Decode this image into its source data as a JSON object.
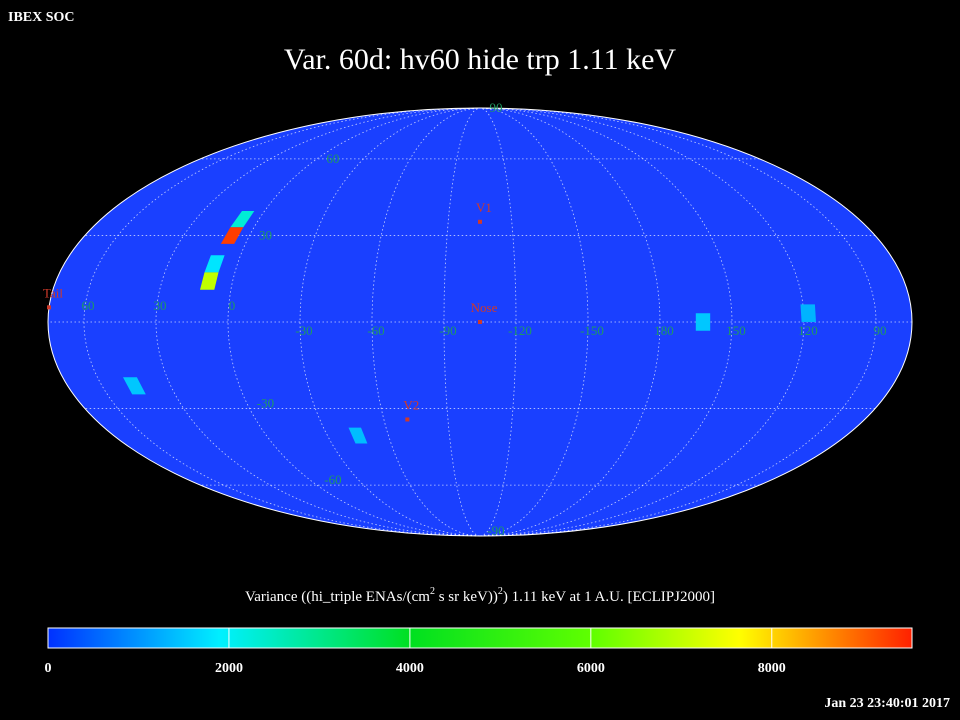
{
  "header": "IBEX SOC",
  "title": "Var. 60d: hv60 hide trp 1.11 keV",
  "map": {
    "lon_labels": [
      60,
      30,
      0,
      -30,
      -60,
      -90,
      -120,
      -150,
      180,
      150,
      120,
      90
    ],
    "lat_labels": [
      90,
      60,
      30,
      -30,
      -60,
      -90
    ],
    "markers": [
      {
        "label": "V1",
        "lon": -105,
        "lat": 35
      },
      {
        "label": "Nose",
        "lon": -105,
        "lat": 0
      },
      {
        "label": "V2",
        "lon": -71,
        "lat": -34
      },
      {
        "label": "Tail",
        "lon": 75,
        "lat": 5
      }
    ],
    "cells": [
      {
        "lon": 8,
        "lat": 36,
        "value": 2300
      },
      {
        "lon": 8,
        "lat": 30,
        "value": 9300
      },
      {
        "lon": 10,
        "lat": 20,
        "value": 1800
      },
      {
        "lon": 10,
        "lat": 14,
        "value": 7000
      },
      {
        "lon": 46,
        "lat": -22,
        "value": 1500
      },
      {
        "lon": -45,
        "lat": -40,
        "value": 1400
      },
      {
        "lon": 162,
        "lat": 0,
        "value": 1500
      },
      {
        "lon": 118,
        "lat": 3,
        "value": 1300
      }
    ]
  },
  "colorbar": {
    "label": [
      "Variance ((hi_triple ENAs/(cm",
      "2",
      " s sr keV))",
      "2",
      ") 1.11 keV at 1 A.U. [ECLIPJ2000]"
    ],
    "lim": [
      0,
      9550
    ],
    "ticks": [
      0,
      2000,
      4000,
      6000,
      8000
    ]
  },
  "timestamp": "Jan 23 23:40:01 2017"
}
